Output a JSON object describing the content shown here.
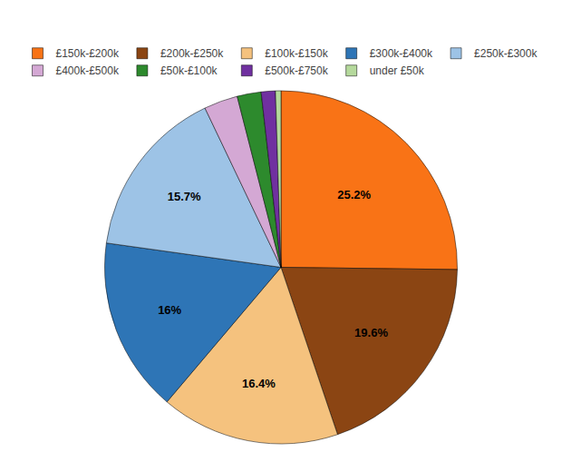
{
  "chart_data": {
    "type": "pie",
    "categories": [
      "£150k-£200k",
      "£200k-£250k",
      "£100k-£150k",
      "£300k-£400k",
      "£250k-£300k",
      "£400k-£500k",
      "£50k-£100k",
      "£500k-£750k",
      "under £50k"
    ],
    "values": [
      25.2,
      19.6,
      16.4,
      16.0,
      15.7,
      3.1,
      2.2,
      1.3,
      0.5
    ],
    "value_labels": [
      "25.2%",
      "19.6%",
      "16.4%",
      "16%",
      "15.7%",
      null,
      null,
      null,
      null
    ],
    "colors": [
      "#f97316",
      "#8B4513",
      "#f5c27e",
      "#2e75b6",
      "#9dc3e6",
      "#d4a8d4",
      "#2d8a2d",
      "#7030a0",
      "#b5d99c"
    ],
    "legend": "top"
  }
}
